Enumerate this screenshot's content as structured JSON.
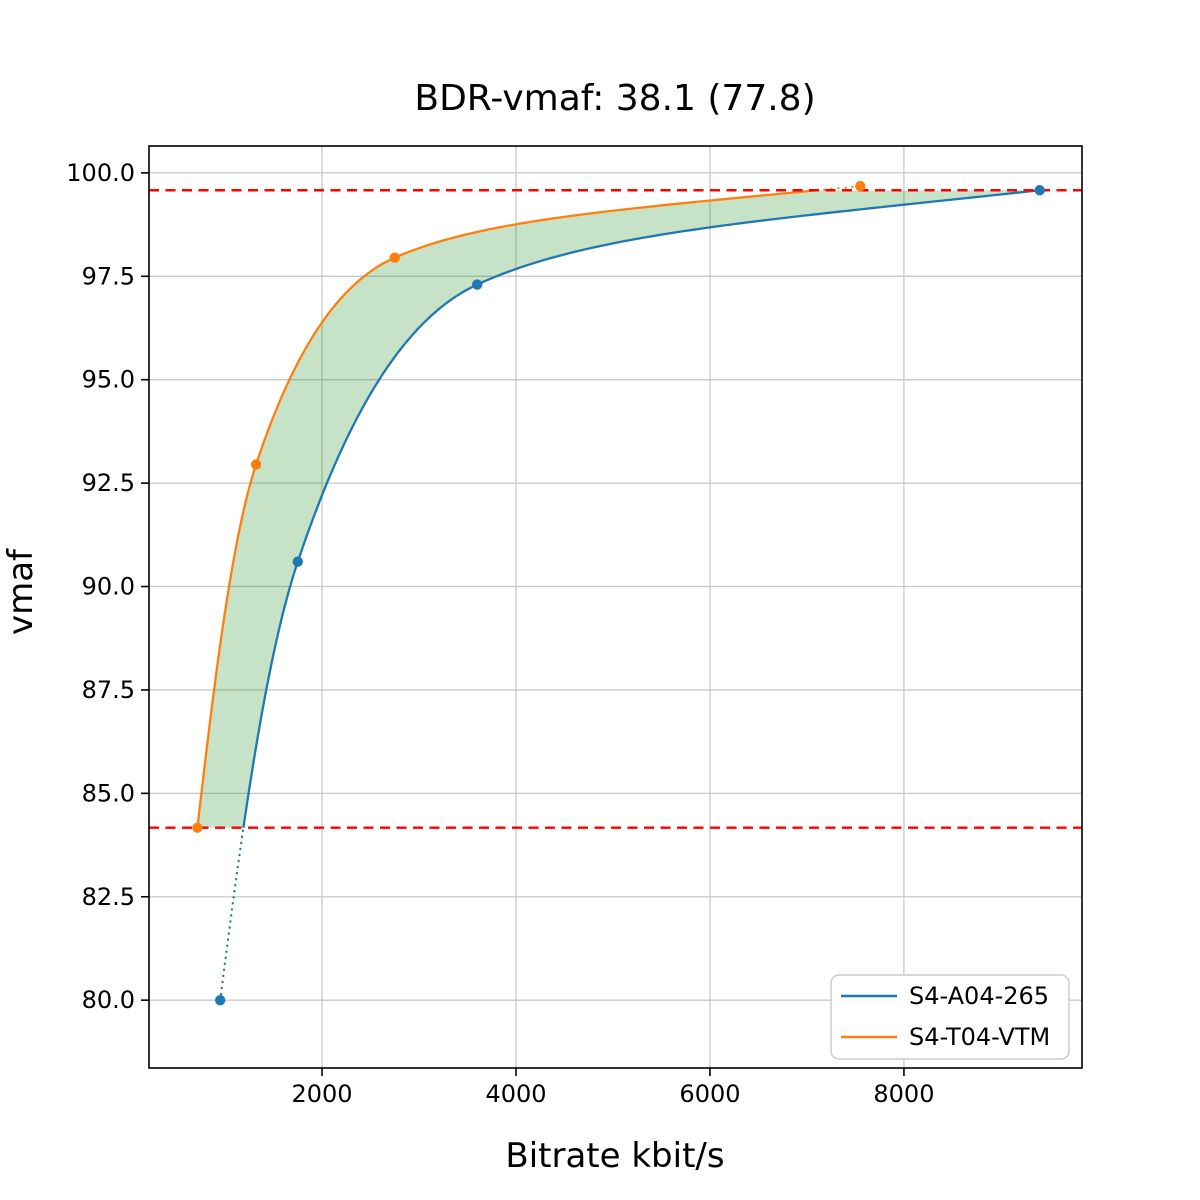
{
  "figure": {
    "background": "#ffffff"
  },
  "chart_data": {
    "type": "line",
    "title": "BDR-vmaf: 38.1 (77.8)",
    "xlabel": "Bitrate kbit/s",
    "ylabel": "vmaf",
    "xlim": [
      216,
      9836
    ],
    "ylim": [
      78.36,
      100.65
    ],
    "xticks": [
      2000,
      4000,
      6000,
      8000
    ],
    "yticks": [
      80.0,
      82.5,
      85.0,
      87.5,
      90.0,
      92.5,
      95.0,
      97.5,
      100.0
    ],
    "grid": true,
    "grid_color": "#c9c9c9",
    "legend": {
      "position": "lower right",
      "entries": [
        "S4-A04-265",
        "S4-T04-VTM"
      ]
    },
    "series": [
      {
        "name": "S4-A04-265",
        "color": "#1f77b4",
        "x": [
          950,
          1750,
          3600,
          9400
        ],
        "y": [
          80.0,
          90.6,
          97.3,
          99.58
        ]
      },
      {
        "name": "S4-T04-VTM",
        "color": "#ff7f0e",
        "x": [
          715,
          1320,
          2750,
          7550
        ],
        "y": [
          84.17,
          92.95,
          97.95,
          99.68
        ]
      }
    ],
    "overlap_lines": {
      "low": 84.17,
      "high": 99.58,
      "color": "#ff0000",
      "style": "dashed"
    },
    "band_fill_color": "rgba(0, 128, 0, 0.22)",
    "interpolation": "pchip-log-x"
  }
}
